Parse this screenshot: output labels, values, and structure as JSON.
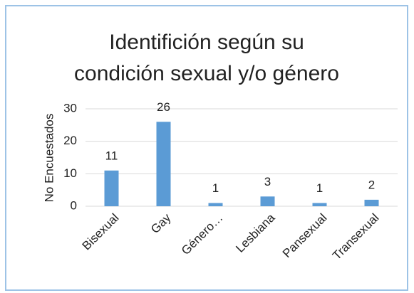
{
  "chart_data": {
    "type": "bar",
    "title": "Identifición según su condición sexual y/o género",
    "y_axis_label": "No Encuestados",
    "categories": [
      "Bisexual",
      "Gay",
      "Género…",
      "Lesbiana",
      "Pansexual",
      "Transexual"
    ],
    "values": [
      11,
      26,
      1,
      3,
      1,
      2
    ],
    "color": "#5b9bd5",
    "ylim": [
      0,
      30
    ],
    "yticks": [
      0,
      10,
      20,
      30
    ],
    "grid": true
  }
}
